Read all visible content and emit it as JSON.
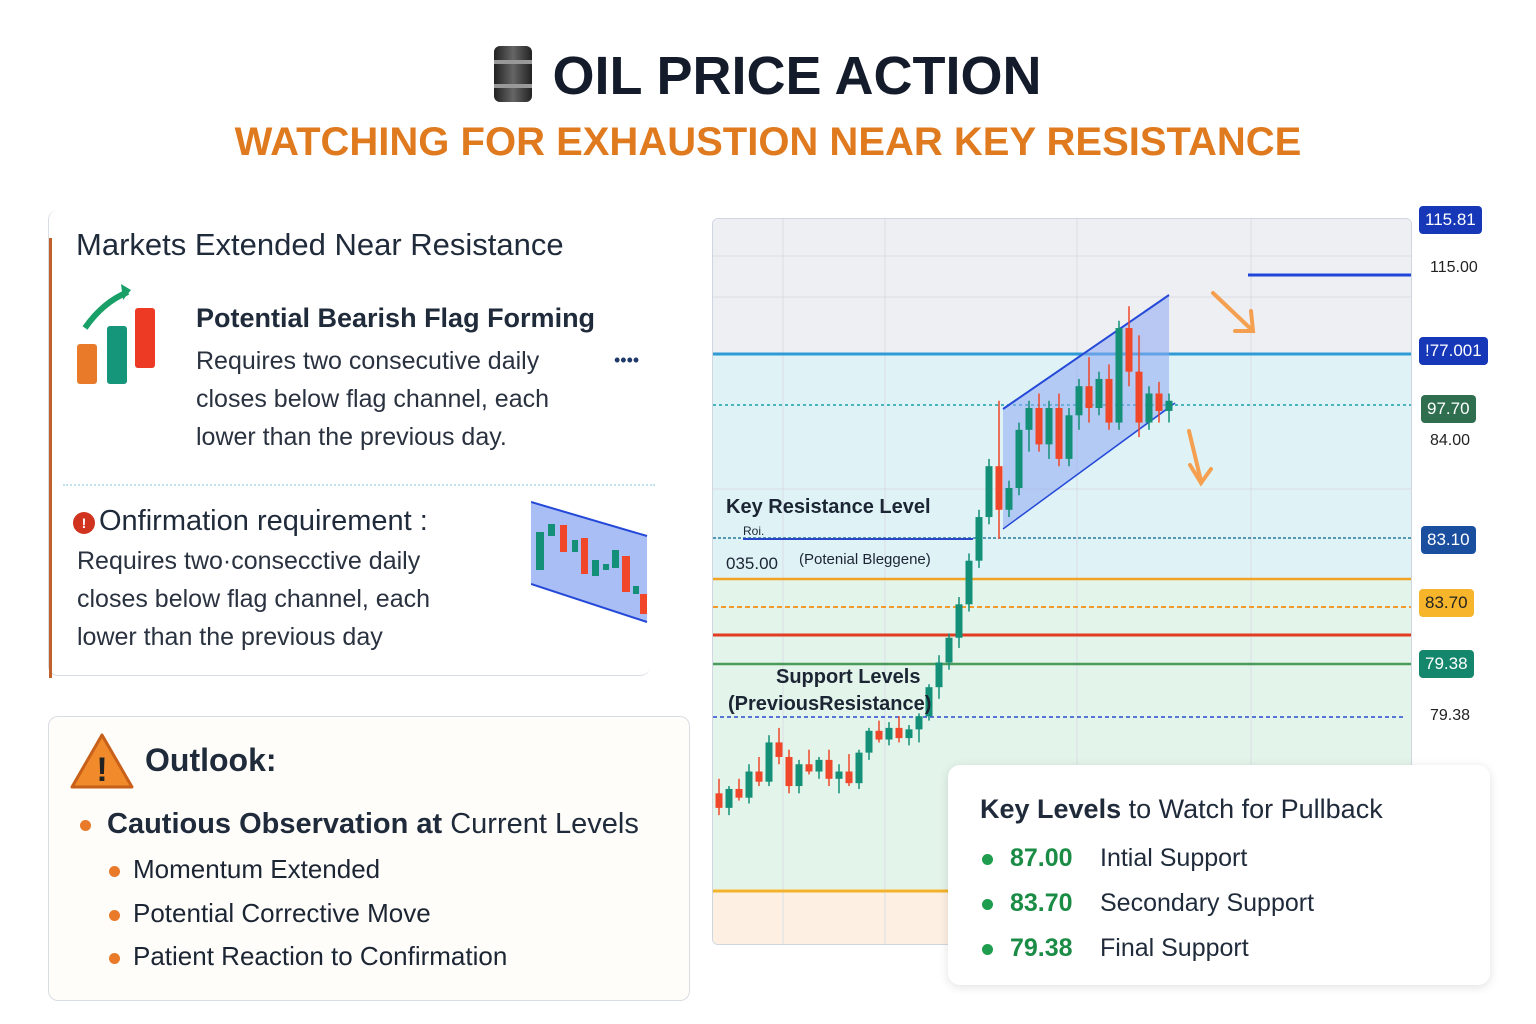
{
  "header": {
    "title": "OIL PRICE ACTION",
    "subtitle": "WATCHING FOR EXHAUSTION NEAR KEY RESISTANCE",
    "icon": "oil-barrel-icon"
  },
  "card1": {
    "heading": "Markets Extended Near Resistance",
    "flag_title": "Potential Bearish Flag Forming",
    "flag_text": [
      "Requires two consecutive daily",
      "closes below flag channel, each",
      "lower than the previous day."
    ],
    "more": "••••",
    "confirm_title": "Onfirmation requirement :",
    "confirm_text": [
      "Requires two·consecctive daily",
      "closes below flag channel, each",
      "lower than the previous day"
    ]
  },
  "outlook": {
    "title": "Outlook:",
    "main_bold": "Cautious Observation at",
    "main_rest": " Current Levels",
    "items": [
      "Momentum Extended",
      "Potential Corrective Move",
      "Patient Reaction to Confirmation"
    ]
  },
  "chart_labels": {
    "key_resistance": "Key Resistance Level",
    "small": "Roi.",
    "level_note": "035.00",
    "level_note2": "(Potenial Bleggene)",
    "support": "Support Levels",
    "support2": "(PreviousResistance)"
  },
  "price_tags": [
    {
      "text": "115.81",
      "color": "#1537b8"
    },
    {
      "text": "115.00",
      "color": ""
    },
    {
      "text": "!77.001",
      "color": "#1537b8"
    },
    {
      "text": "97.70",
      "color": "#2f6e4e"
    },
    {
      "text": "84.00",
      "color": ""
    },
    {
      "text": "83.10",
      "color": "#1a4fa0"
    },
    {
      "text": "83.70",
      "color": "#f7b52c"
    },
    {
      "text": "79.38",
      "color": "#13866c"
    },
    {
      "text": "79.38",
      "color": ""
    }
  ],
  "key_levels": {
    "title_bold": "Key Levels",
    "title_rest": " to Watch for Pullback",
    "items": [
      {
        "value": "87.00",
        "label": "Intial Support"
      },
      {
        "value": "83.70",
        "label": "Secondary Support"
      },
      {
        "value": "79.38",
        "label": "Final Support"
      }
    ]
  },
  "colors": {
    "up": "#139077",
    "down": "#f0462a",
    "accent": "#e07a1f",
    "support_green": "#1a8c45"
  },
  "chart_data": {
    "type": "candlestick",
    "ylim": [
      70,
      120
    ],
    "candles": [
      [
        80.5,
        81.5,
        79,
        79.5
      ],
      [
        79.5,
        81,
        79,
        80.8
      ],
      [
        80.8,
        81.5,
        80,
        80.2
      ],
      [
        80.2,
        82.5,
        79.8,
        82
      ],
      [
        82,
        83,
        81,
        81.3
      ],
      [
        81.3,
        84.5,
        81,
        84
      ],
      [
        84,
        85,
        82.5,
        83
      ],
      [
        83,
        83.5,
        80.5,
        81
      ],
      [
        81,
        82.8,
        80.5,
        82.5
      ],
      [
        82.5,
        83.5,
        81.8,
        82
      ],
      [
        82,
        83,
        81.5,
        82.8
      ],
      [
        82.8,
        83.5,
        81,
        81.5
      ],
      [
        81.5,
        82.5,
        80.5,
        82
      ],
      [
        82,
        83.2,
        81,
        81.2
      ],
      [
        81.2,
        83.5,
        80.8,
        83.3
      ],
      [
        83.3,
        85,
        82.8,
        84.8
      ],
      [
        84.8,
        85.5,
        84,
        84.2
      ],
      [
        84.2,
        85.4,
        83.8,
        85
      ],
      [
        85,
        85.8,
        84,
        84.3
      ],
      [
        84.3,
        85.2,
        83.8,
        84.9
      ],
      [
        84.9,
        86,
        84,
        85.8
      ],
      [
        85.8,
        88,
        85.5,
        87.8
      ],
      [
        87.8,
        90,
        87,
        89.5
      ],
      [
        89.5,
        91.5,
        89,
        91.2
      ],
      [
        91.2,
        94,
        90.5,
        93.5
      ],
      [
        93.5,
        97,
        93,
        96.5
      ],
      [
        96.5,
        100,
        96,
        99.5
      ],
      [
        99.5,
        103.5,
        99,
        103
      ],
      [
        103,
        107.5,
        98,
        100
      ],
      [
        100,
        102,
        99.5,
        101.5
      ],
      [
        101.5,
        106,
        101,
        105.5
      ],
      [
        105.5,
        107.5,
        104,
        107
      ],
      [
        107,
        108,
        104,
        104.5
      ],
      [
        104.5,
        107.5,
        103.5,
        107
      ],
      [
        107,
        108,
        103,
        103.5
      ],
      [
        103.5,
        107,
        103,
        106.5
      ],
      [
        106.5,
        109,
        105.5,
        108.5
      ],
      [
        108.5,
        110.5,
        106,
        107
      ],
      [
        107,
        109.5,
        106.5,
        109
      ],
      [
        109,
        110,
        105.5,
        106
      ],
      [
        106,
        113,
        105.5,
        112.5
      ],
      [
        112.5,
        114,
        108.5,
        109.5
      ],
      [
        109.5,
        112,
        105,
        106
      ],
      [
        106,
        108.5,
        105.5,
        108
      ],
      [
        108,
        108.8,
        106,
        106.8
      ],
      [
        106.8,
        108,
        106,
        107.5
      ]
    ]
  }
}
